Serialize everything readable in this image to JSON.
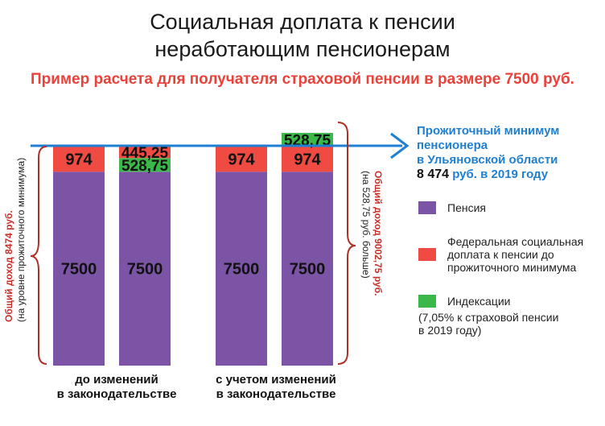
{
  "title_line1": "Социальная доплата к пенсии",
  "title_line2": "неработающим пенсионерам",
  "subtitle": "Пример расчета для получателя страховой пенсии в размере 7500 руб.",
  "colors": {
    "pension": "#7b54a6",
    "federal": "#f04b43",
    "indexation": "#3bb84a",
    "arrow": "#1f7fd1",
    "brace": "#b03028"
  },
  "level": {
    "line1": "Прожиточный минимум",
    "line2": "пенсионера",
    "line3": "в Ульяновской области",
    "value": "8 474",
    "value_suffix": " руб. в 2019 году"
  },
  "left_note": {
    "line1": "Общий доход 8474 руб.",
    "line2": "(на уровне прожиточного минимума)"
  },
  "right_note": {
    "line1": "Общий доход 9002,75 руб.",
    "line2": "(на 528,75 руб. больше)"
  },
  "groups": [
    {
      "line1": "до изменений",
      "line2": "в законодательстве"
    },
    {
      "line1": "с учетом изменений",
      "line2": "в законодательстве"
    }
  ],
  "legend": {
    "pension": "Пенсия",
    "federal_1": "Федеральная социальная",
    "federal_2": "доплата к пенсии до",
    "federal_3": "прожиточного минимума",
    "index_1": "Индексации",
    "index_2": "(7,05% к страховой пенсии",
    "index_3": "в 2019 году)"
  },
  "chart_data": {
    "type": "bar",
    "stacked": true,
    "level_value": 8474,
    "bars": [
      {
        "segments": [
          {
            "series": "pension",
            "value": 7500,
            "label": "7500"
          },
          {
            "series": "federal",
            "value": 974,
            "label": "974"
          }
        ]
      },
      {
        "segments": [
          {
            "series": "pension",
            "value": 7500,
            "label": "7500"
          },
          {
            "series": "indexation",
            "value": 528.75,
            "label": "528,75"
          },
          {
            "series": "federal",
            "value": 445.25,
            "label": "445,25"
          }
        ]
      },
      {
        "segments": [
          {
            "series": "pension",
            "value": 7500,
            "label": "7500"
          },
          {
            "series": "federal",
            "value": 974,
            "label": "974"
          }
        ]
      },
      {
        "segments": [
          {
            "series": "pension",
            "value": 7500,
            "label": "7500"
          },
          {
            "series": "federal",
            "value": 974,
            "label": "974"
          },
          {
            "series": "indexation",
            "value": 528.75,
            "label": "528,75"
          }
        ]
      }
    ]
  }
}
